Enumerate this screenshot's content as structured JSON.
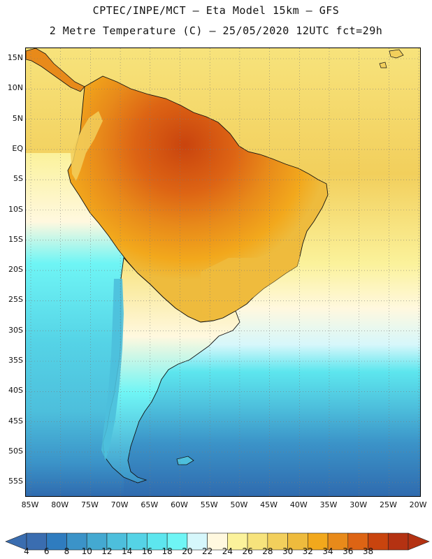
{
  "header": {
    "title_line1": "CPTEC/INPE/MCT –  Eta Model 15km – GFS",
    "title_line2": "2 Metre Temperature (C) – 25/05/2020 12UTC fct=29h"
  },
  "axes": {
    "lat_labels": [
      "15N",
      "10N",
      "5N",
      "EQ",
      "5S",
      "10S",
      "15S",
      "20S",
      "25S",
      "30S",
      "35S",
      "40S",
      "45S",
      "50S",
      "55S"
    ],
    "lon_labels": [
      "85W",
      "80W",
      "75W",
      "70W",
      "65W",
      "60W",
      "55W",
      "50W",
      "45W",
      "40W",
      "35W",
      "30W",
      "25W",
      "20W"
    ]
  },
  "colorbar": {
    "levels": [
      "4",
      "6",
      "8",
      "10",
      "12",
      "14",
      "16",
      "18",
      "20",
      "22",
      "24",
      "26",
      "28",
      "30",
      "32",
      "34",
      "36",
      "38"
    ],
    "colors": [
      "#3a6db0",
      "#2f7cbf",
      "#3b93c8",
      "#44a9d1",
      "#4dbfdc",
      "#55d3e6",
      "#5de6ee",
      "#6ff5f5",
      "#d6f7fb",
      "#fff8df",
      "#fbf29b",
      "#f7e37c",
      "#f2cf5c",
      "#eebb3d",
      "#f2a81c",
      "#e88a1a",
      "#dd6414",
      "#c9440e",
      "#b43212"
    ],
    "under_color": "#3a6db0",
    "over_color": "#b43212"
  }
}
